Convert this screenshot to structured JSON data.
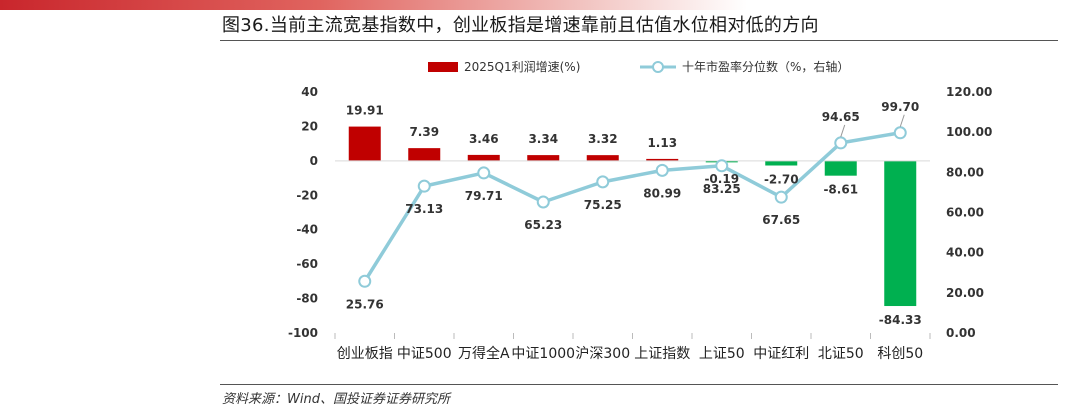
{
  "header": {
    "title": "图36.当前主流宽基指数中，创业板指是增速靠前且估值水位相对低的方向"
  },
  "footer": {
    "source": "资料来源：Wind、国投证券证券研究所"
  },
  "chart_data": {
    "type": "bar+line",
    "categories": [
      "创业板指",
      "中证500",
      "万得全A",
      "中证1000",
      "沪深300",
      "上证指数",
      "上证50",
      "中证红利",
      "北证50",
      "科创50"
    ],
    "series": [
      {
        "name": "2025Q1利润增速(%)",
        "type": "bar",
        "axis": "left",
        "values": [
          19.91,
          7.39,
          3.46,
          3.34,
          3.32,
          1.13,
          -0.19,
          -2.7,
          -8.61,
          -84.33
        ],
        "labels": [
          "19.91",
          "7.39",
          "3.46",
          "3.34",
          "3.32",
          "1.13",
          "-0.19",
          "-2.70",
          "-8.61",
          "-84.33"
        ]
      },
      {
        "name": "十年市盈率分位数（%，右轴）",
        "type": "line",
        "axis": "right",
        "values": [
          25.76,
          73.13,
          79.71,
          65.23,
          75.25,
          80.99,
          83.25,
          67.65,
          94.65,
          99.7
        ],
        "labels": [
          "25.76",
          "73.13",
          "79.71",
          "65.23",
          "75.25",
          "80.99",
          "83.25",
          "67.65",
          "94.65",
          "99.70"
        ]
      }
    ],
    "y_left": {
      "min": -100,
      "max": 40,
      "step": 20,
      "ticks": [
        "40",
        "20",
        "0",
        "-20",
        "-40",
        "-60",
        "-80",
        "-100"
      ]
    },
    "y_right": {
      "min": 0,
      "max": 120,
      "step": 20,
      "ticks": [
        "120.00",
        "100.00",
        "80.00",
        "60.00",
        "40.00",
        "20.00",
        "0.00"
      ]
    },
    "legend_position": "top-center",
    "grid": false,
    "colors": {
      "bar_positive": "#c00000",
      "bar_negative": "#00b050",
      "line": "#8fcbd9",
      "marker_fill": "#ffffff",
      "leader": "#999999"
    }
  }
}
